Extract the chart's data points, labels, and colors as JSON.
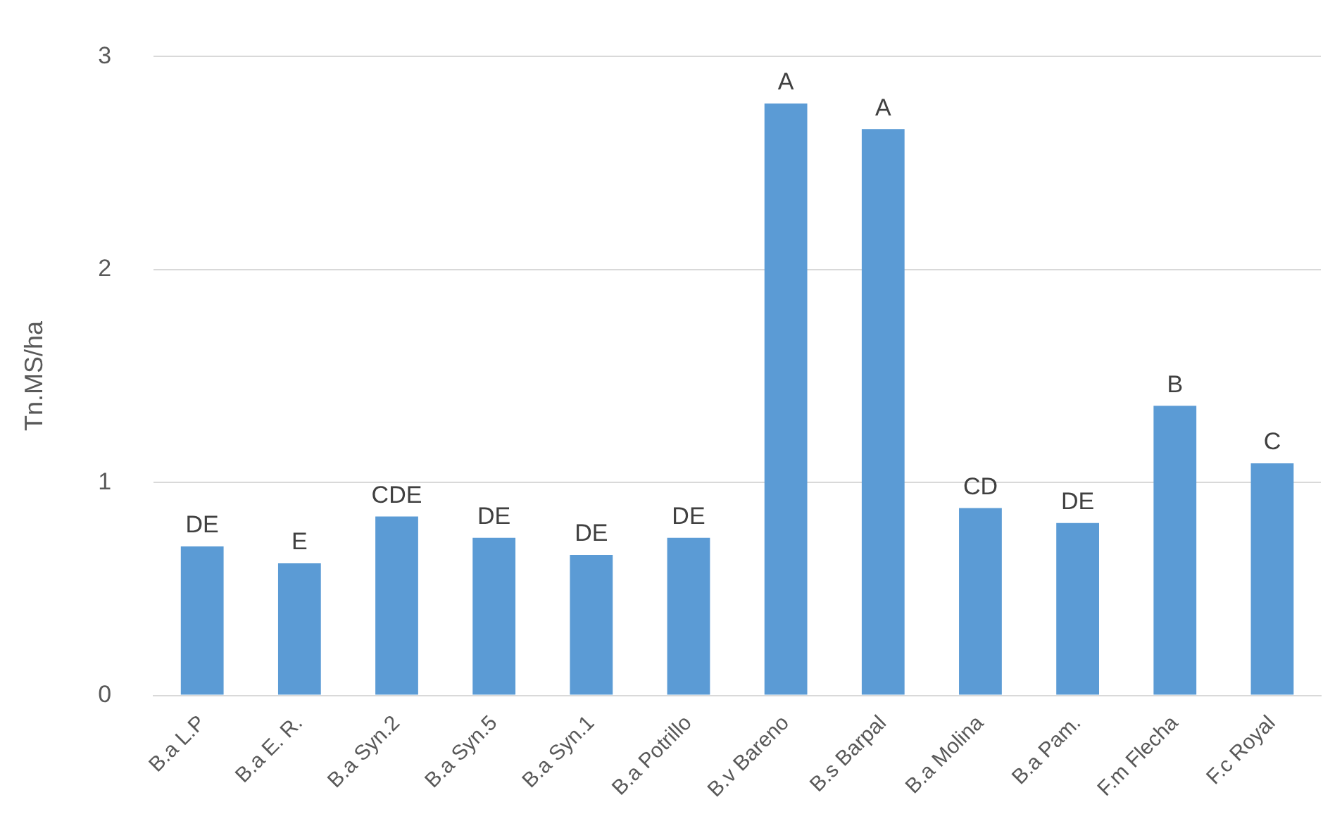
{
  "chart_data": {
    "type": "bar",
    "ylabel": "Tn.MS/ha",
    "categories": [
      "B.a L.P",
      "B.a E. R.",
      "B.a Syn.2",
      "B.a Syn.5",
      "B.a Syn.1",
      "B.a Potrillo",
      "B.v Bareno",
      "B.s Barpal",
      "B.a Molina",
      "B.a Pam.",
      "F.m Flecha",
      "F.c Royal"
    ],
    "values": [
      0.7,
      0.62,
      0.84,
      0.74,
      0.66,
      0.74,
      2.78,
      2.66,
      0.88,
      0.81,
      1.36,
      1.09
    ],
    "color": "#5b9bd5",
    "ylim": [
      0,
      3
    ],
    "yticks": [
      0,
      1,
      2,
      3
    ],
    "grid": "y",
    "annotations": [
      {
        "text": "DE",
        "x": "B.a L.P",
        "y": 0.7
      },
      {
        "text": "E",
        "x": "B.a E. R.",
        "y": 0.62
      },
      {
        "text": "CDE",
        "x": "B.a Syn.2",
        "y": 0.84
      },
      {
        "text": "DE",
        "x": "B.a Syn.5",
        "y": 0.74
      },
      {
        "text": "DE",
        "x": "B.a Syn.1",
        "y": 0.66
      },
      {
        "text": "DE",
        "x": "B.a Potrillo",
        "y": 0.74
      },
      {
        "text": "A",
        "x": "B.v Bareno",
        "y": 2.78
      },
      {
        "text": "A",
        "x": "B.s Barpal",
        "y": 2.66
      },
      {
        "text": "CD",
        "x": "B.a Molina",
        "y": 0.88
      },
      {
        "text": "DE",
        "x": "B.a Pam.",
        "y": 0.81
      },
      {
        "text": "B",
        "x": "F.m Flecha",
        "y": 1.36
      },
      {
        "text": "C",
        "x": "F.c Royal",
        "y": 1.09
      }
    ]
  }
}
